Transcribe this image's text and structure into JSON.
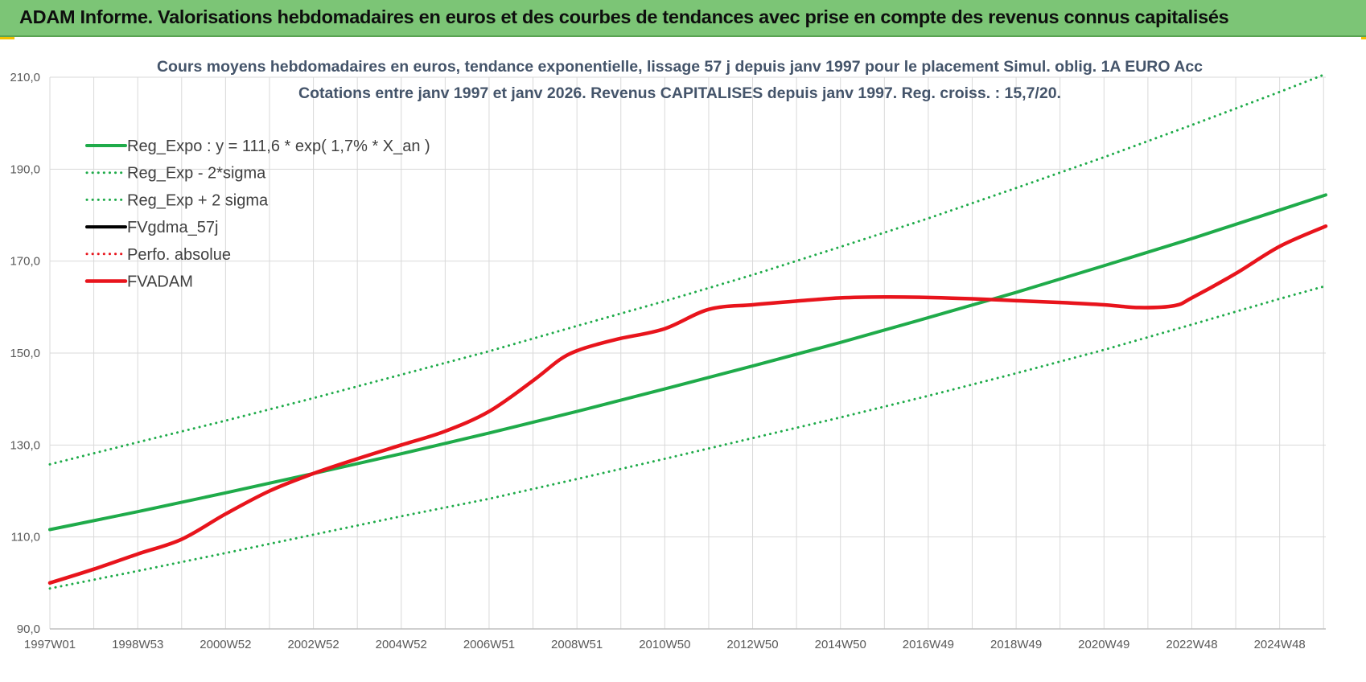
{
  "banner": {
    "title": "ADAM Informe. Valorisations hebdomadaires en euros et des courbes de tendances avec prise en compte des revenus connus capitalisés"
  },
  "colors": {
    "banner_bg": "#7cc576",
    "trend_green": "#1fab4a",
    "fvadam_red": "#e8141c",
    "grid": "#d9d9d9",
    "title": "#44546a"
  },
  "chart_data": {
    "type": "line",
    "title": "Cours moyens hebdomadaires en euros, tendance exponentielle, lissage 57 j depuis janv 1997 pour le placement Simul. oblig. 1A EURO Acc",
    "subtitle": "Cotations entre janv 1997 et janv 2026. Revenus CAPITALISES depuis janv 1997. Reg. croiss. : 15,7/20.",
    "xlabel": "",
    "ylabel": "",
    "ylim": [
      90,
      210
    ],
    "yticks": [
      "90,0",
      "110,0",
      "130,0",
      "150,0",
      "170,0",
      "190,0",
      "210,0"
    ],
    "xlim": [
      1997.0,
      2026.05
    ],
    "xticks": [
      {
        "label": "1997W01",
        "x": 1997.0
      },
      {
        "label": "1998W53",
        "x": 1999.0
      },
      {
        "label": "2000W52",
        "x": 2001.0
      },
      {
        "label": "2002W52",
        "x": 2003.0
      },
      {
        "label": "2004W52",
        "x": 2005.0
      },
      {
        "label": "2006W51",
        "x": 2007.0
      },
      {
        "label": "2008W51",
        "x": 2009.0
      },
      {
        "label": "2010W50",
        "x": 2011.0
      },
      {
        "label": "2012W50",
        "x": 2013.0
      },
      {
        "label": "2014W50",
        "x": 2015.0
      },
      {
        "label": "2016W49",
        "x": 2017.0
      },
      {
        "label": "2018W49",
        "x": 2019.0
      },
      {
        "label": "2020W49",
        "x": 2021.0
      },
      {
        "label": "2022W48",
        "x": 2023.0
      },
      {
        "label": "2024W48",
        "x": 2025.0
      }
    ],
    "grid": true,
    "legend_position": "top-left",
    "series": [
      {
        "name": "Reg_Expo : y = 111,6 * exp( 1,7% *  X_an )",
        "color": "#1fab4a",
        "style": "solid",
        "width": 4,
        "x": [
          1997,
          1999,
          2001,
          2003,
          2005,
          2007,
          2009,
          2011,
          2013,
          2015,
          2017,
          2019,
          2021,
          2023,
          2025,
          2026.05
        ],
        "y": [
          111.6,
          115.5,
          119.6,
          123.8,
          128.1,
          132.6,
          137.3,
          142.2,
          147.2,
          152.3,
          157.7,
          163.2,
          169.0,
          174.9,
          181.1,
          184.4
        ]
      },
      {
        "name": "Reg_Exp - 2*sigma",
        "color": "#1fab4a",
        "style": "dotted",
        "width": 3,
        "x": [
          1997,
          1999,
          2001,
          2003,
          2005,
          2007,
          2009,
          2011,
          2013,
          2015,
          2017,
          2019,
          2021,
          2023,
          2025,
          2026.05
        ],
        "y": [
          98.8,
          102.6,
          106.5,
          110.5,
          114.5,
          118.3,
          122.6,
          127.0,
          131.5,
          136.0,
          140.7,
          145.6,
          150.7,
          156.2,
          161.8,
          164.6
        ]
      },
      {
        "name": "Reg_Exp + 2 sigma",
        "color": "#1fab4a",
        "style": "dotted",
        "width": 3,
        "x": [
          1997,
          1999,
          2001,
          2003,
          2005,
          2007,
          2009,
          2011,
          2013,
          2015,
          2017,
          2019,
          2021,
          2023,
          2025,
          2026.05
        ],
        "y": [
          125.8,
          130.6,
          135.3,
          140.2,
          145.3,
          150.4,
          155.9,
          161.3,
          167.0,
          173.1,
          179.3,
          185.9,
          192.6,
          199.6,
          206.8,
          210.7
        ]
      },
      {
        "name": "FVgdma_57j",
        "color": "#000000",
        "style": "solid",
        "width": 3,
        "x": [],
        "y": []
      },
      {
        "name": "Perfo. absolue",
        "color": "#e8141c",
        "style": "dotted",
        "width": 3,
        "x": [],
        "y": []
      },
      {
        "name": "FVADAM",
        "color": "#e8141c",
        "style": "solid",
        "width": 4.5,
        "x": [
          1997.0,
          1998.0,
          1999.0,
          2000.0,
          2001.0,
          2002.0,
          2003.0,
          2004.0,
          2005.0,
          2006.0,
          2007.0,
          2008.0,
          2008.6,
          2009.0,
          2009.5,
          2010.0,
          2011.0,
          2012.0,
          2013.0,
          2014.0,
          2015.0,
          2016.0,
          2017.0,
          2018.0,
          2019.0,
          2020.0,
          2021.0,
          2021.8,
          2022.6,
          2023.0,
          2024.0,
          2025.0,
          2026.05
        ],
        "y": [
          100.0,
          103.0,
          106.3,
          109.5,
          115.0,
          120.0,
          123.8,
          127.0,
          130.0,
          133.0,
          137.3,
          144.0,
          148.5,
          150.5,
          152.0,
          153.2,
          155.3,
          159.5,
          160.5,
          161.3,
          162.0,
          162.2,
          162.1,
          161.8,
          161.4,
          161.0,
          160.5,
          159.9,
          160.3,
          162.0,
          167.3,
          173.2,
          177.6
        ]
      }
    ]
  }
}
